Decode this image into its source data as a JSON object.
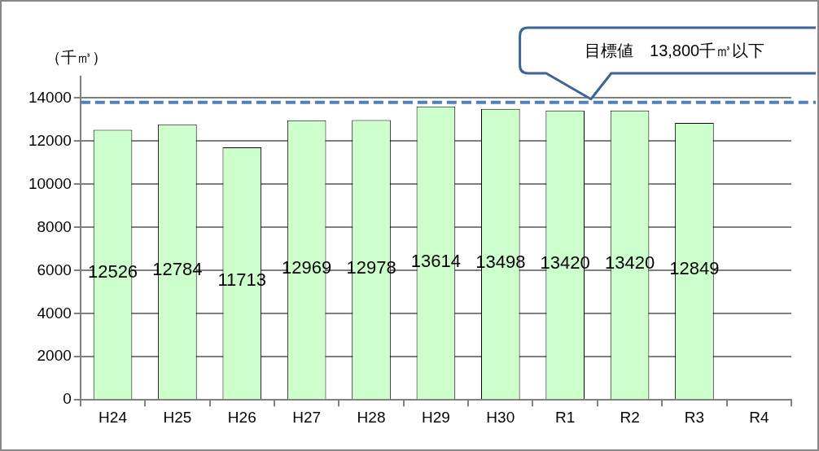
{
  "chart_data": {
    "type": "bar",
    "ylabel": "（千㎥）",
    "categories": [
      "H24",
      "H25",
      "H26",
      "H27",
      "H28",
      "H29",
      "H30",
      "R1",
      "R2",
      "R3",
      "R4"
    ],
    "values": [
      12526,
      12784,
      11713,
      12969,
      12978,
      13614,
      13498,
      13420,
      13420,
      12849,
      null
    ],
    "color": "#ccffcc",
    "data_labels": true,
    "ylim": [
      0,
      15000
    ],
    "yticks": [
      0,
      2000,
      4000,
      6000,
      8000,
      10000,
      12000,
      14000
    ],
    "grid": "y",
    "ref_lines": [
      {
        "axis": "y",
        "value": 13800,
        "label": "目標値　13,800千㎥以下",
        "color": "#4f81bd",
        "line_style": "dashed"
      }
    ]
  }
}
